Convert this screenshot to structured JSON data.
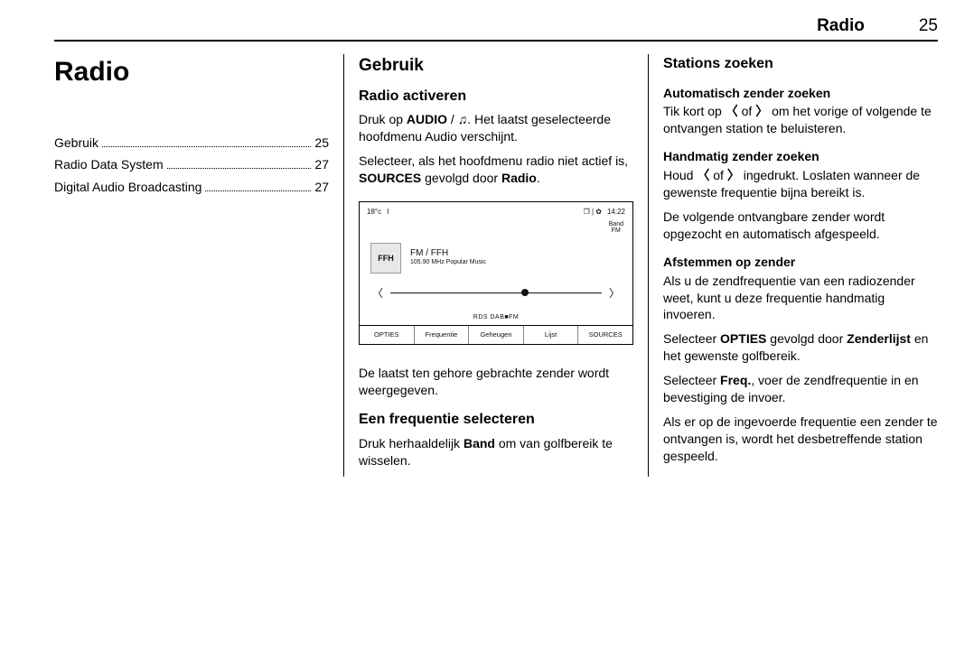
{
  "header": {
    "title": "Radio",
    "page_number": "25"
  },
  "col1": {
    "h1": "Radio",
    "toc": [
      {
        "label": "Gebruik",
        "page": "25"
      },
      {
        "label": "Radio Data System",
        "page": "27"
      },
      {
        "label": "Digital Audio Broadcasting",
        "page": "27"
      }
    ]
  },
  "col2": {
    "h2": "Gebruik",
    "h3_activate": "Radio activeren",
    "p1_pre": "Druk op ",
    "p1_b1": "AUDIO",
    "p1_mid": " / ",
    "p1_icon": "♫",
    "p1_post": ". Het laatst gese­lecteerde hoofdmenu Audio verschijnt.",
    "p2_pre": "Selecteer, als het hoofdmenu radio niet actief is, ",
    "p2_b1": "SOURCES",
    "p2_mid": " gevolgd door ",
    "p2_b2": "Radio",
    "p2_post": ".",
    "figure": {
      "temp": "18°c",
      "signal": "I",
      "top_right_icons": "❐ | ✿",
      "time": "14:22",
      "band_label": "Band",
      "band_value": "FM",
      "logo": "FFH",
      "station": "FM / FFH",
      "meta": "105.90 MHz Popular Music",
      "arr_left": "〈",
      "arr_right": "〉",
      "knob_pct": 62,
      "rds": "RDS    DAB■FM",
      "tabs": [
        "OPTIES",
        "Frequentie",
        "Geheugen",
        "Lijst",
        "SOURCES"
      ]
    },
    "p3": "De laatst ten gehore gebrachte zender wordt weergegeven.",
    "h3_freq": "Een frequentie selecteren",
    "p4_pre": "Druk herhaaldelijk ",
    "p4_b1": "Band",
    "p4_post": " om van golf­bereik te wisselen."
  },
  "col3": {
    "h3_stations": "Stations zoeken",
    "h4_auto": "Automatisch zender zoeken",
    "p_auto_pre": "Tik kort op ",
    "p_auto_l": "〈",
    "p_auto_mid": " of ",
    "p_auto_r": "〉",
    "p_auto_post": " om het vorige of volgende te ontvangen station te beluisteren.",
    "h4_manual": "Handmatig zender zoeken",
    "p_man_pre": "Houd ",
    "p_man_l": "〈",
    "p_man_mid": " of ",
    "p_man_r": "〉",
    "p_man_post": " ingedrukt. Loslaten wanneer de gewenste frequentie bijna bereikt is.",
    "p_man2": "De volgende ontvangbare zender wordt opgezocht en automatisch afgespeeld.",
    "h4_tune": "Afstemmen op zender",
    "p_tune1": "Als u de zendfrequentie van een radi­ozender weet, kunt u deze frequentie handmatig invoeren.",
    "p_tune2_pre": "Selecteer ",
    "p_tune2_b1": "OPTIES",
    "p_tune2_mid": " gevolgd door ",
    "p_tune2_b2": "Zenderlijst",
    "p_tune2_post": " en het gewenste golfbe­reik.",
    "p_tune3_pre": "Selecteer ",
    "p_tune3_b1": "Freq.",
    "p_tune3_post": ", voer de zendfre­quentie in en bevestiging de invoer.",
    "p_tune4": "Als er op de ingevoerde frequentie een zender te ontvangen is, wordt het desbetreffende station gespeeld."
  }
}
